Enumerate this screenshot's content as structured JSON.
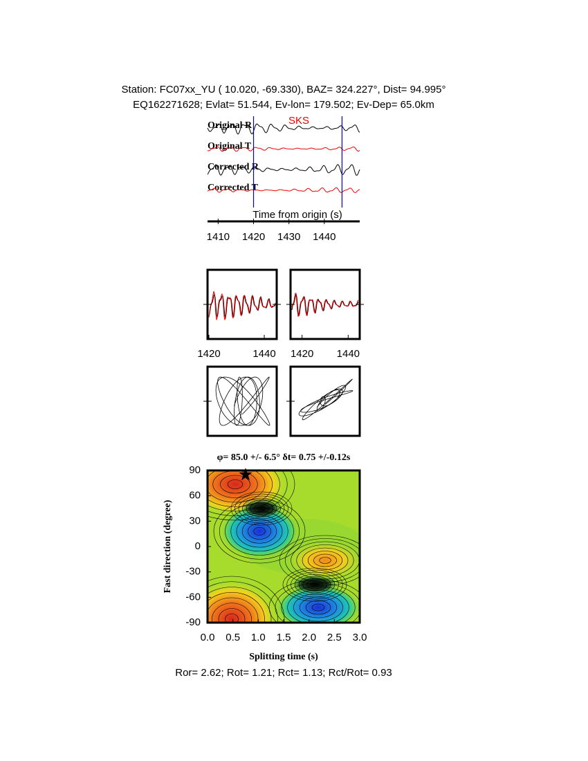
{
  "header": {
    "line1": "Station: FC07xx_YU ( 10.020, -69.330), BAZ= 324.227°, Dist= 94.995°",
    "line2": "EQ162271628; Evlat= 51.544, Ev-lon= 179.502; Ev-Dep= 65.0km"
  },
  "chart_data": [
    {
      "type": "waveform",
      "phase_label": "SKS",
      "traces": [
        "Original R",
        "Original T",
        "Corrected R",
        "Corrected T"
      ],
      "xlabel": "Time from origin (s)",
      "xlim": [
        1407,
        1450
      ],
      "xticks": [
        1410,
        1420,
        1430,
        1440
      ],
      "window_markers": [
        1420,
        1445
      ]
    },
    {
      "type": "waveform-pair",
      "xlim": [
        1419.5,
        1444.5
      ],
      "xticks": [
        1420,
        1440
      ]
    },
    {
      "type": "waveform-pair",
      "xlim": [
        1415,
        1445
      ],
      "xticks": [
        1420,
        1440
      ]
    },
    {
      "type": "contour",
      "title": "φ= 85.0 +/- 6.5° δt= 0.75 +/-0.12s",
      "xlabel": "Splitting time (s)",
      "ylabel": "Fast direction (degree)",
      "xlim": [
        0,
        3
      ],
      "xticks": [
        {
          "value": 0,
          "label": "0.0"
        },
        0.5,
        {
          "value": 1,
          "label": "1.0"
        },
        1.5,
        {
          "value": 2,
          "label": "2.0"
        },
        2.5,
        {
          "value": 3,
          "label": "3.0"
        }
      ],
      "ylim": [
        -90,
        90
      ],
      "yticks": [
        -90,
        -60,
        -30,
        0,
        30,
        60,
        90
      ],
      "best": {
        "x": 0.75,
        "y": 85
      }
    }
  ],
  "footer": "Ror= 2.62; Rot= 1.21; Rct= 1.13; Rct/Rot= 0.93"
}
